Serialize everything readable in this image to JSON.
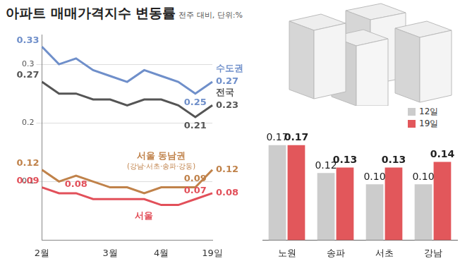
{
  "chart_data": [
    {
      "type": "line",
      "title": "아파트 매매가격지수 변동률",
      "subtitle": "전주 대비, 단위:%",
      "categories": [
        "2월",
        null,
        null,
        null,
        "3월",
        null,
        null,
        "4월",
        null,
        null,
        "19일"
      ],
      "series": [
        {
          "name": "수도권",
          "color": "#6f8fca",
          "values": [
            0.33,
            0.3,
            0.31,
            0.29,
            0.28,
            0.27,
            0.29,
            0.28,
            0.27,
            0.25,
            0.27
          ],
          "value_labels": [
            "0.33",
            null,
            null,
            null,
            null,
            null,
            null,
            null,
            null,
            "0.25",
            "0.27"
          ]
        },
        {
          "name": "전국",
          "color": "#555555",
          "values": [
            0.27,
            0.25,
            0.25,
            0.24,
            0.24,
            0.23,
            0.24,
            0.24,
            0.23,
            0.21,
            0.23
          ],
          "value_labels": [
            "0.27",
            null,
            null,
            null,
            null,
            null,
            null,
            null,
            null,
            "0.21",
            "0.23"
          ]
        },
        {
          "name": "서울 동남권",
          "color": "#c0824a",
          "values": [
            0.12,
            0.1,
            0.11,
            0.1,
            0.09,
            0.09,
            0.08,
            0.09,
            0.09,
            0.09,
            0.12
          ],
          "value_labels": [
            "0.12",
            null,
            null,
            null,
            null,
            null,
            null,
            null,
            null,
            "0.09",
            "0.12"
          ]
        },
        {
          "name": "서울",
          "color": "#e2505a",
          "values": [
            0.09,
            0.08,
            0.08,
            0.07,
            0.07,
            0.07,
            0.07,
            0.06,
            0.06,
            0.07,
            0.08
          ],
          "value_labels": [
            "0.09",
            null,
            "0.08",
            null,
            null,
            null,
            null,
            null,
            null,
            "0.07",
            "0.08"
          ]
        }
      ],
      "annotations": [
        {
          "text": "(강남·서초·송파·강동)",
          "series": "서울 동남권"
        }
      ],
      "ylim": [
        0,
        0.35
      ],
      "yticks": [
        0.1,
        0.2,
        0.3
      ],
      "grid": true,
      "data_labels": true,
      "marker": "none",
      "line_style": "solid"
    },
    {
      "type": "bar",
      "categories": [
        "노원",
        "송파",
        "서초",
        "강남"
      ],
      "series": [
        {
          "name": "12일",
          "color": "#cccccc",
          "values": [
            0.17,
            0.12,
            0.1,
            0.1
          ],
          "value_labels": [
            "0.17",
            "0.12",
            "0.10",
            "0.10"
          ]
        },
        {
          "name": "19일",
          "color": "#e2575b",
          "values": [
            0.17,
            0.13,
            0.13,
            0.14
          ],
          "value_labels": [
            "0.17",
            "0.13",
            "0.13",
            "0.14"
          ]
        }
      ],
      "ylim": [
        0,
        0.2
      ],
      "data_labels": true,
      "tick_labels": "x",
      "legend": "upper right"
    }
  ]
}
